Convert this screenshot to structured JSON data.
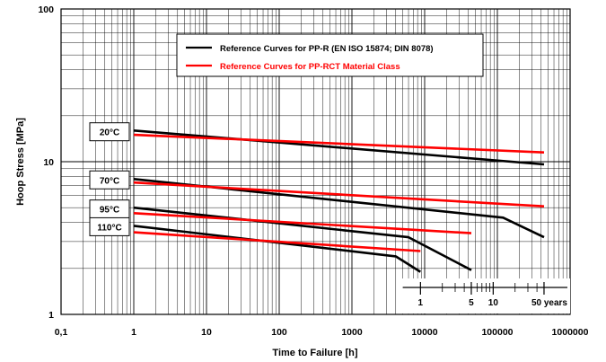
{
  "chart_data": {
    "type": "line",
    "xscale": "log",
    "yscale": "log",
    "xlim": [
      0.1,
      1000000
    ],
    "ylim": [
      1,
      100
    ],
    "xlabel": "Time to Failure [h]",
    "ylabel": "Hoop Stress [MPa]",
    "grid": true,
    "legend_position": "top-right",
    "x_tick_labels": [
      "0,1",
      "1",
      "10",
      "100",
      "1000",
      "10000",
      "100000",
      "1000000"
    ],
    "x_tick_values": [
      0.1,
      1,
      10,
      100,
      1000,
      10000,
      100000,
      1000000
    ],
    "y_tick_labels": [
      "1",
      "10",
      "100"
    ],
    "y_tick_values": [
      1,
      10,
      100
    ],
    "legend": [
      {
        "label": "Reference Curves for PP-R (EN ISO 15874; DIN 8078)",
        "color": "#000000"
      },
      {
        "label": "Reference Curves for PP-RCT Material Class",
        "color": "#ff0000"
      }
    ],
    "temperature_labels": [
      {
        "text": "20°C",
        "y": 15.7
      },
      {
        "text": "70°C",
        "y": 7.6
      },
      {
        "text": "95°C",
        "y": 4.9
      },
      {
        "text": "110°C",
        "y": 3.75
      }
    ],
    "years_scale": {
      "labels": [
        "1",
        "5",
        "10",
        "50 years"
      ],
      "hours": [
        8760,
        43800,
        87600,
        438000
      ],
      "axis_range": [
        5000,
        1000000
      ]
    },
    "series": [
      {
        "group": "PP-R",
        "color": "#000000",
        "points": [
          [
            1,
            16.0
          ],
          [
            438000,
            9.6
          ]
        ]
      },
      {
        "group": "PP-R",
        "color": "#000000",
        "points": [
          [
            1,
            7.7
          ],
          [
            120000,
            4.3
          ],
          [
            438000,
            3.2
          ]
        ]
      },
      {
        "group": "PP-R",
        "color": "#000000",
        "points": [
          [
            1,
            5.0
          ],
          [
            6000,
            3.2
          ],
          [
            43800,
            1.95
          ]
        ]
      },
      {
        "group": "PP-R",
        "color": "#000000",
        "points": [
          [
            1,
            3.8
          ],
          [
            4000,
            2.4
          ],
          [
            8760,
            1.9
          ]
        ]
      },
      {
        "group": "PP-RCT",
        "color": "#ff0000",
        "points": [
          [
            1,
            15.0
          ],
          [
            438000,
            11.5
          ]
        ]
      },
      {
        "group": "PP-RCT",
        "color": "#ff0000",
        "points": [
          [
            1,
            7.3
          ],
          [
            438000,
            5.1
          ]
        ]
      },
      {
        "group": "PP-RCT",
        "color": "#ff0000",
        "points": [
          [
            1,
            4.6
          ],
          [
            43800,
            3.4
          ]
        ]
      },
      {
        "group": "PP-RCT",
        "color": "#ff0000",
        "points": [
          [
            1,
            3.45
          ],
          [
            8760,
            2.6
          ]
        ]
      }
    ]
  }
}
